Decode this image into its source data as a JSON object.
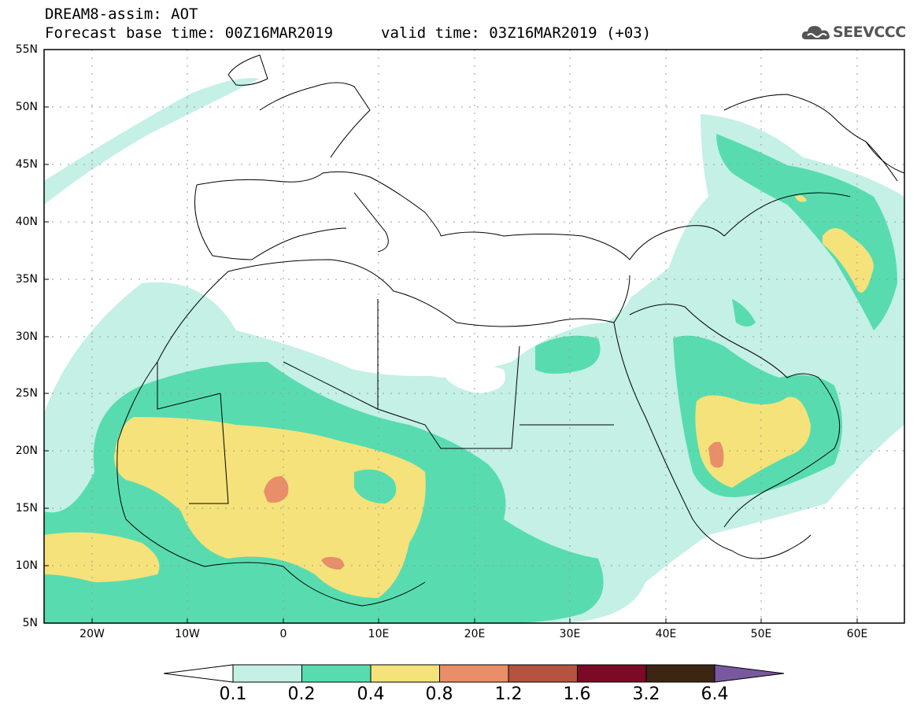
{
  "header": {
    "title_line1": "DREAM8-assim: AOT",
    "title_line2": "Forecast base time: 00Z16MAR2019",
    "valid_time": "valid time: 03Z16MAR2019 (+03)",
    "logo_text": "SEEVCCC"
  },
  "map": {
    "lat_labels": [
      "55N",
      "50N",
      "45N",
      "40N",
      "35N",
      "30N",
      "25N",
      "20N",
      "15N",
      "10N",
      "5N"
    ],
    "lon_labels": [
      "20W",
      "10W",
      "0",
      "10E",
      "20E",
      "30E",
      "40E",
      "50E",
      "60E"
    ],
    "extent": {
      "lon_min": -25,
      "lon_max": 65,
      "lat_min": 5,
      "lat_max": 55
    }
  },
  "legend": {
    "labels": [
      "0.1",
      "0.2",
      "0.4",
      "0.8",
      "1.2",
      "1.6",
      "3.2",
      "6.4"
    ],
    "colors": [
      "#c4f0e6",
      "#58dcaf",
      "#f5e27a",
      "#e88e69",
      "#b4533f",
      "#7a0a25",
      "#3d2513",
      "#7a58a0"
    ]
  }
}
